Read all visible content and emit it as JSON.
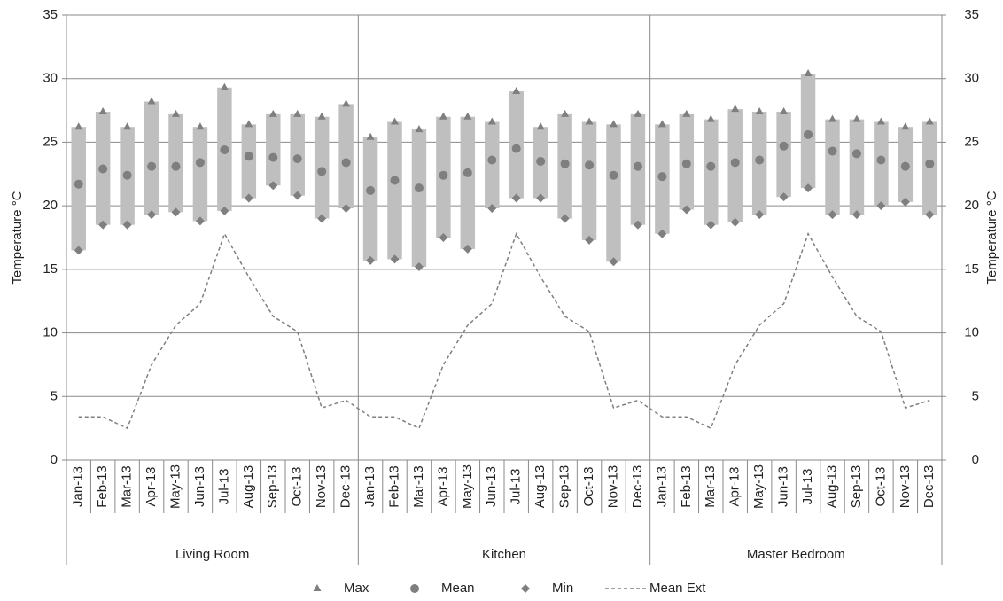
{
  "chart_data": {
    "type": "high-low",
    "ylabel": "Temperature °C",
    "y2label": "Temperature °C",
    "groups": [
      "Living Room",
      "Kitchen",
      "Master Bedroom"
    ],
    "categories": [
      [
        "Jan-13",
        "Feb-13",
        "Mar-13",
        "Apr-13",
        "May-13",
        "Jun-13",
        "Jul-13",
        "Aug-13",
        "Sep-13",
        "Oct-13",
        "Nov-13",
        "Dec-13"
      ],
      [
        "Jan-13",
        "Feb-13",
        "Mar-13",
        "Apr-13",
        "May-13",
        "Jun-13",
        "Jul-13",
        "Aug-13",
        "Sep-13",
        "Oct-13",
        "Nov-13",
        "Dec-13"
      ],
      [
        "Jan-13",
        "Feb-13",
        "Mar-13",
        "Apr-13",
        "May-13",
        "Jun-13",
        "Jul-13",
        "Aug-13",
        "Sep-13",
        "Oct-13",
        "Nov-13",
        "Dec-13"
      ]
    ],
    "series": [
      {
        "name": "Max",
        "color": "#7f7f7f",
        "marker": "triangle",
        "values": [
          [
            26.2,
            27.4,
            26.2,
            28.2,
            27.2,
            26.2,
            29.3,
            26.4,
            27.2,
            27.2,
            27.0,
            28.0
          ],
          [
            25.4,
            26.6,
            26.0,
            27.0,
            27.0,
            26.6,
            29.0,
            26.2,
            27.2,
            26.6,
            26.4,
            27.2
          ],
          [
            26.4,
            27.2,
            26.8,
            27.6,
            27.4,
            27.4,
            30.4,
            26.8,
            26.8,
            26.6,
            26.2,
            26.6
          ]
        ]
      },
      {
        "name": "Mean",
        "color": "#7f7f7f",
        "marker": "circle",
        "values": [
          [
            21.7,
            22.9,
            22.4,
            23.1,
            23.1,
            23.4,
            24.4,
            23.9,
            23.8,
            23.7,
            22.7,
            23.4
          ],
          [
            21.2,
            22.0,
            21.4,
            22.4,
            22.6,
            23.6,
            24.5,
            23.5,
            23.3,
            23.2,
            22.4,
            23.1
          ],
          [
            22.3,
            23.3,
            23.1,
            23.4,
            23.6,
            24.7,
            25.6,
            24.3,
            24.1,
            23.6,
            23.1,
            23.3
          ]
        ]
      },
      {
        "name": "Min",
        "color": "#7f7f7f",
        "marker": "diamond",
        "values": [
          [
            16.5,
            18.5,
            18.5,
            19.3,
            19.5,
            18.8,
            19.6,
            20.6,
            21.6,
            20.8,
            19.0,
            19.8
          ],
          [
            15.7,
            15.8,
            15.2,
            17.5,
            16.6,
            19.8,
            20.6,
            20.6,
            19.0,
            17.3,
            15.6,
            18.5
          ],
          [
            17.8,
            19.7,
            18.5,
            18.7,
            19.3,
            20.7,
            21.4,
            19.3,
            19.3,
            20.0,
            20.3,
            19.3
          ]
        ]
      },
      {
        "name": "Mean Ext",
        "color": "#7f7f7f",
        "marker": "dashed-line",
        "values": [
          [
            3.4,
            3.4,
            2.5,
            7.5,
            10.6,
            12.3,
            17.8,
            14.4,
            11.3,
            10.1,
            4.1,
            4.7
          ],
          [
            3.4,
            3.4,
            2.5,
            7.5,
            10.6,
            12.3,
            17.8,
            14.4,
            11.3,
            10.1,
            4.1,
            4.7
          ],
          [
            3.4,
            3.4,
            2.5,
            7.5,
            10.6,
            12.3,
            17.8,
            14.4,
            11.3,
            10.1,
            4.1,
            4.7
          ]
        ]
      }
    ],
    "range_color": "#bfbfbf",
    "ylim": [
      0,
      35
    ],
    "yticks": [
      0,
      5,
      10,
      15,
      20,
      25,
      30,
      35
    ],
    "y2lim": [
      0,
      35
    ],
    "y2ticks": [
      0,
      5,
      10,
      15,
      20,
      25,
      30,
      35
    ],
    "grid": true
  }
}
